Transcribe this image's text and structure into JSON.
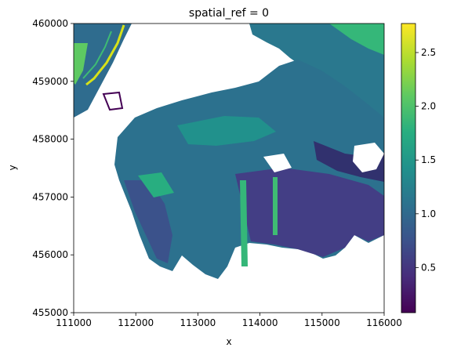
{
  "chart_data": {
    "type": "heatmap",
    "title": "spatial_ref = 0",
    "xlabel": "x",
    "ylabel": "y",
    "xlim": [
      111000,
      116000
    ],
    "ylim": [
      455000,
      460000
    ],
    "x_ticks": [
      111000,
      112000,
      113000,
      114000,
      115000,
      116000
    ],
    "y_ticks": [
      455000,
      456000,
      457000,
      458000,
      459000,
      460000
    ],
    "colorbar": {
      "colormap": "viridis",
      "range": [
        0.08,
        2.77
      ],
      "ticks": [
        0.5,
        1.0,
        1.5,
        2.0,
        2.5
      ],
      "tick_labels": [
        "0.5",
        "1.0",
        "1.5",
        "2.0",
        "2.5"
      ]
    },
    "grid": false
  }
}
